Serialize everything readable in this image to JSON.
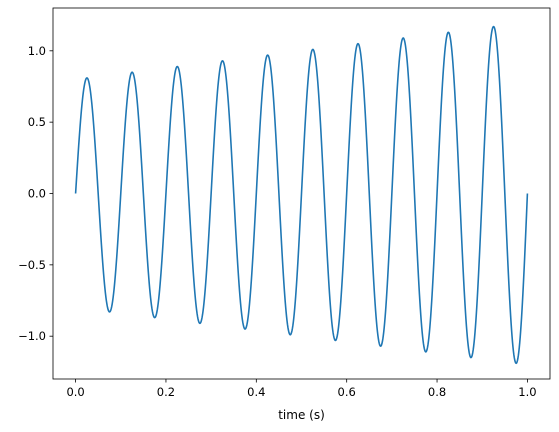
{
  "chart_data": {
    "type": "line",
    "title": "",
    "xlabel": "time (s)",
    "ylabel": "",
    "xlim": [
      -0.05,
      1.05
    ],
    "ylim": [
      -1.3,
      1.3
    ],
    "grid": false,
    "xticks": [
      {
        "value": 0.0,
        "label": "0.0"
      },
      {
        "value": 0.2,
        "label": "0.2"
      },
      {
        "value": 0.4,
        "label": "0.4"
      },
      {
        "value": 0.6,
        "label": "0.6"
      },
      {
        "value": 0.8,
        "label": "0.8"
      },
      {
        "value": 1.0,
        "label": "1.0"
      }
    ],
    "yticks": [
      {
        "value": -1.0,
        "label": "−1.0"
      },
      {
        "value": -0.5,
        "label": "−0.5"
      },
      {
        "value": 0.0,
        "label": "0.0"
      },
      {
        "value": 0.5,
        "label": "0.5"
      },
      {
        "value": 1.0,
        "label": "1.0"
      }
    ],
    "series": [
      {
        "color": "#1f77b4",
        "function": "(0.8 + 0.4*t) * sin(2*pi*10*t)",
        "x_start": 0.0,
        "x_end": 1.0,
        "samples": 1001,
        "peaks": [
          {
            "x": 0.025,
            "y": 0.81
          },
          {
            "x": 0.125,
            "y": 0.85
          },
          {
            "x": 0.225,
            "y": 0.89
          },
          {
            "x": 0.325,
            "y": 0.93
          },
          {
            "x": 0.425,
            "y": 0.97
          },
          {
            "x": 0.525,
            "y": 1.01
          },
          {
            "x": 0.625,
            "y": 1.05
          },
          {
            "x": 0.725,
            "y": 1.09
          },
          {
            "x": 0.825,
            "y": 1.13
          },
          {
            "x": 0.925,
            "y": 1.17
          }
        ],
        "troughs": [
          {
            "x": 0.075,
            "y": -0.83
          },
          {
            "x": 0.175,
            "y": -0.87
          },
          {
            "x": 0.275,
            "y": -0.91
          },
          {
            "x": 0.375,
            "y": -0.95
          },
          {
            "x": 0.475,
            "y": -0.99
          },
          {
            "x": 0.575,
            "y": -1.03
          },
          {
            "x": 0.675,
            "y": -1.07
          },
          {
            "x": 0.775,
            "y": -1.11
          },
          {
            "x": 0.875,
            "y": -1.15
          },
          {
            "x": 0.975,
            "y": -1.19
          }
        ]
      }
    ]
  }
}
